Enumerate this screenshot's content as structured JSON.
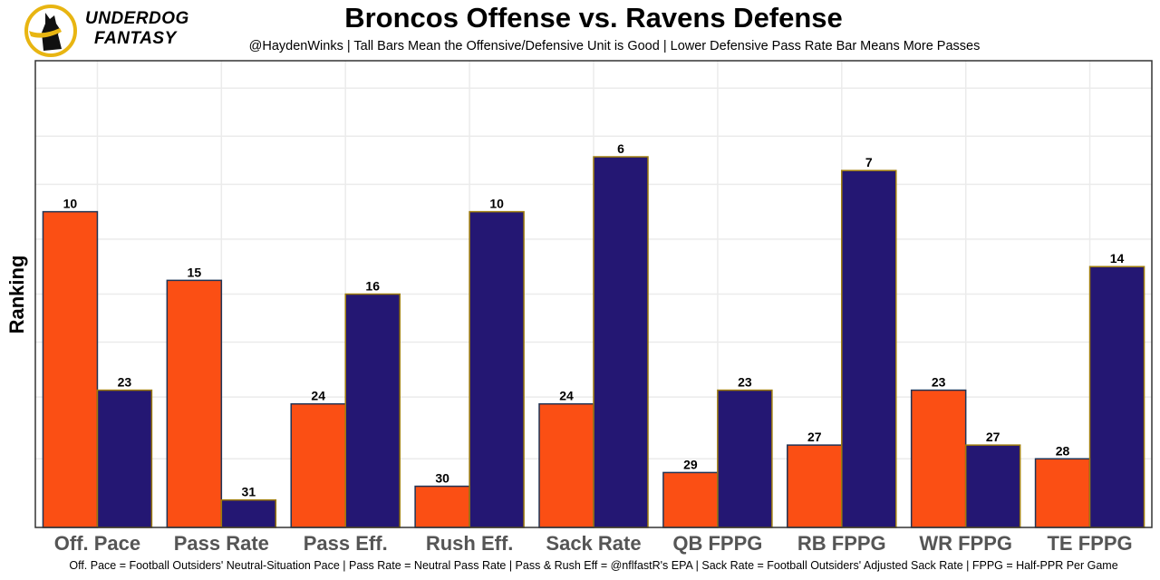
{
  "brand": {
    "line1": "UNDERDOG",
    "line2": "FANTASY"
  },
  "chart_data": {
    "type": "bar",
    "title": "Broncos Offense vs. Ravens Defense",
    "subtitle": "@HaydenWinks | Tall Bars Mean the Offensive/Defensive Unit is Good | Lower Defensive Pass Rate Bar Means More Passes",
    "caption": "Off. Pace = Football Outsiders' Neutral-Situation Pace | Pass Rate = Neutral Pass Rate | Pass & Rush Eff = @nflfastR's EPA | Sack Rate = Football Outsiders' Adjusted Sack Rate | FPPG = Half-PPR Per Game",
    "xlabel": "",
    "ylabel": "Ranking",
    "bar_height_rule": "height = 33 - rank",
    "ylim": [
      0,
      34
    ],
    "grid": true,
    "y_gridlines": [
      5,
      9.5,
      13.5,
      17,
      21,
      25,
      28.5,
      32
    ],
    "legend": "none",
    "categories": [
      "Off. Pace",
      "Pass Rate",
      "Pass Eff.",
      "Rush Eff.",
      "Sack Rate",
      "QB FPPG",
      "RB FPPG",
      "WR FPPG",
      "TE FPPG"
    ],
    "series": [
      {
        "name": "Broncos Offense",
        "color": "#FB4F14",
        "border": "#1f3456",
        "values": [
          10,
          15,
          24,
          30,
          24,
          29,
          27,
          23,
          28
        ]
      },
      {
        "name": "Ravens Defense",
        "color": "#241773",
        "border": "#9E7C0C",
        "values": [
          23,
          31,
          16,
          10,
          6,
          23,
          7,
          27,
          14
        ]
      }
    ]
  }
}
